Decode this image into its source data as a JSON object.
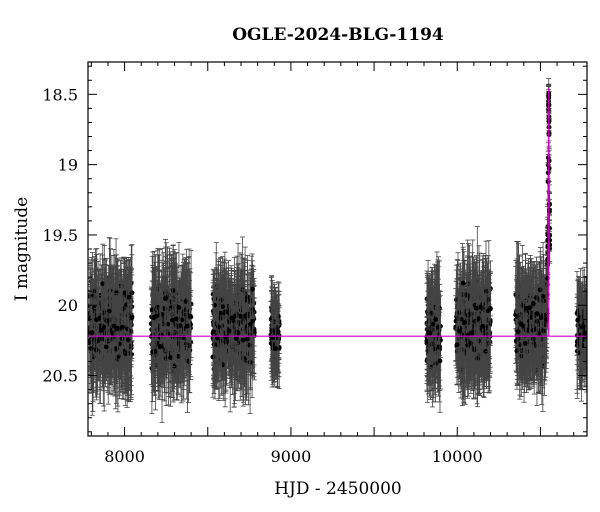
{
  "chart_data": {
    "type": "scatter",
    "title": "OGLE-2024-BLG-1194",
    "xlabel": "HJD - 2450000",
    "ylabel": "I magnitude",
    "xlim": [
      7780,
      10780
    ],
    "ylim": [
      20.93,
      18.27
    ],
    "y_axis_inverted": true,
    "x_ticks": [
      8000,
      9000,
      10000
    ],
    "y_ticks": [
      18.5,
      19,
      19.5,
      20,
      20.5
    ],
    "x_tick_labels": [
      "8000",
      "9000",
      "10000"
    ],
    "y_tick_labels": [
      "18.5",
      "19",
      "19.5",
      "20",
      "20.5"
    ],
    "grid": false,
    "colors": {
      "data": "#000000",
      "model": "#cc00cc"
    },
    "seasons": [
      {
        "start": 7790,
        "end": 8045,
        "mag_mean": 20.15,
        "mag_spread": 0.42,
        "err": 0.28
      },
      {
        "start": 8160,
        "end": 8400,
        "mag_mean": 20.15,
        "mag_spread": 0.42,
        "err": 0.28
      },
      {
        "start": 8530,
        "end": 8780,
        "mag_mean": 20.15,
        "mag_spread": 0.42,
        "err": 0.28
      },
      {
        "start": 8880,
        "end": 8930,
        "mag_mean": 20.2,
        "mag_spread": 0.3,
        "err": 0.22
      },
      {
        "start": 9815,
        "end": 9900,
        "mag_mean": 20.2,
        "mag_spread": 0.4,
        "err": 0.28
      },
      {
        "start": 9990,
        "end": 10200,
        "mag_mean": 20.15,
        "mag_spread": 0.4,
        "err": 0.28
      },
      {
        "start": 10350,
        "end": 10545,
        "mag_mean": 20.15,
        "mag_spread": 0.4,
        "err": 0.28
      },
      {
        "start": 10720,
        "end": 10780,
        "mag_mean": 20.2,
        "mag_spread": 0.35,
        "err": 0.25
      }
    ],
    "event": {
      "t0": 10550,
      "peak_mag": 18.5,
      "baseline_mag": 20.22,
      "tE": 3
    },
    "model": {
      "baseline_mag": 20.22,
      "t0": 10550,
      "peak_mag": 18.45
    }
  }
}
